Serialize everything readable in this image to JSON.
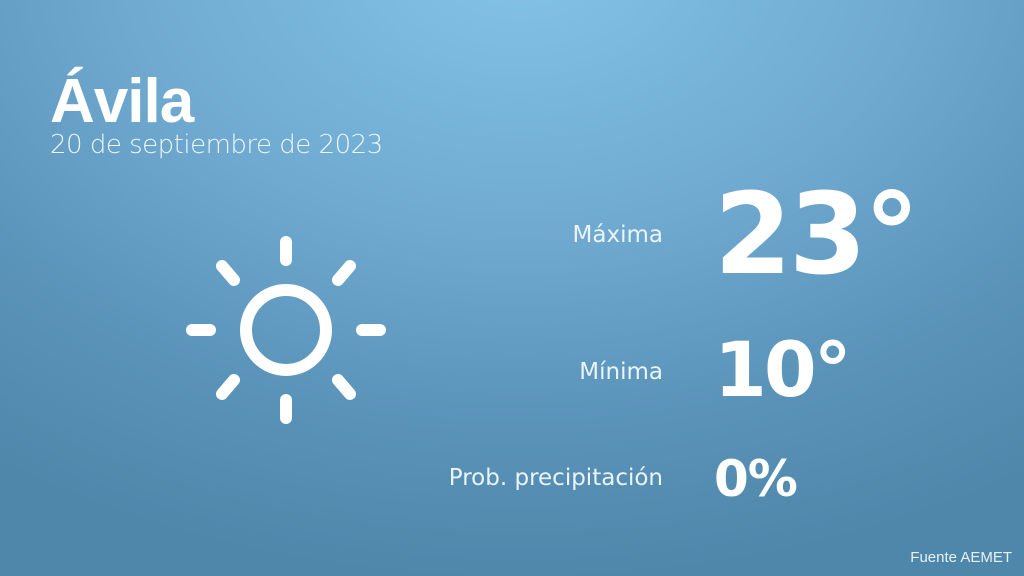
{
  "header": {
    "city": "Ávila",
    "date": "20 de septiembre de 2023"
  },
  "weather": {
    "icon": "sun-icon",
    "max_label": "Máxima",
    "max_value": "23°",
    "min_label": "Mínima",
    "min_value": "10°",
    "precip_label": "Prob. precipitación",
    "precip_value": "0%"
  },
  "footer": {
    "source": "Fuente AEMET"
  },
  "colors": {
    "background_top": "#84c4e8",
    "background_bottom": "#4f87ab",
    "text": "#ffffff"
  }
}
